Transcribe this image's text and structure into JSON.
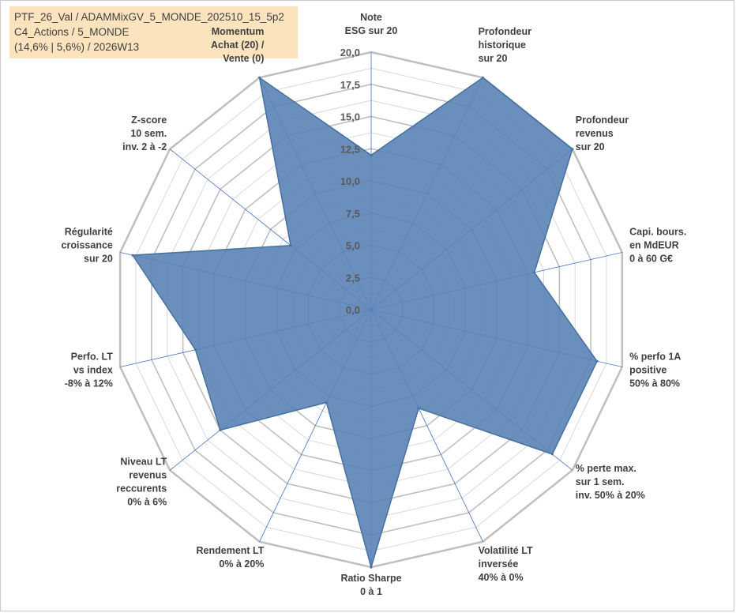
{
  "header": {
    "lines": [
      "PTF_26_Val / ADAMMixGV_5_MONDE_202510_15_5p2",
      "C4_Actions / 5_MONDE",
      "(14,6% | 5,6%) / 2026W13"
    ]
  },
  "colors": {
    "series_fill": "#5b83b5",
    "series_stroke": "#44719f",
    "grid_major": "#bfbfbf",
    "grid_minor": "#d9d9d9",
    "spoke": "#4472c4",
    "header_bg": "#fbe3bd",
    "highlight_text": "#a6a6a6"
  },
  "chart_data": {
    "type": "radar",
    "title": "",
    "rlim": [
      0,
      20
    ],
    "ticks": [
      {
        "value": 0,
        "label": "0,0"
      },
      {
        "value": 2.5,
        "label": "2,5"
      },
      {
        "value": 5,
        "label": "5,0"
      },
      {
        "value": 7.5,
        "label": "7,5"
      },
      {
        "value": 10,
        "label": "10,0"
      },
      {
        "value": 12.5,
        "label": "12,5"
      },
      {
        "value": 15,
        "label": "15,0"
      },
      {
        "value": 17.5,
        "label": "17,5"
      },
      {
        "value": 20,
        "label": "20,0"
      }
    ],
    "categories": [
      {
        "lines": [
          "Note",
          "ESG sur 20"
        ]
      },
      {
        "lines": [
          "Profondeur",
          "historique",
          "sur 20"
        ]
      },
      {
        "lines": [
          "Profondeur",
          "revenus",
          "sur 20"
        ]
      },
      {
        "lines": [
          "Capi. bours.",
          "en MdEUR",
          "0 à 60 G€"
        ]
      },
      {
        "lines": [
          "% perfo 1A",
          "positive",
          "50% à 80%"
        ]
      },
      {
        "lines": [
          "% perte max.",
          "sur 1 sem.",
          "inv. 50% à 20%"
        ]
      },
      {
        "lines": [
          "Volatilité LT",
          "inversée",
          "40% à 0%"
        ]
      },
      {
        "lines": [
          "Ratio Sharpe",
          "0 à 1"
        ]
      },
      {
        "lines": [
          "Rendement LT",
          "0% à 20%"
        ]
      },
      {
        "lines": [
          "Niveau LT",
          "revenus",
          "reccurents",
          "0% à 6%"
        ]
      },
      {
        "lines": [
          "Perfo. LT",
          "vs index",
          "-8% à 12%"
        ]
      },
      {
        "lines": [
          "Régularité",
          "croissance",
          "sur 20"
        ]
      },
      {
        "lines": [
          "Z-score",
          "10 sem.",
          "inv. 2 à -2"
        ]
      },
      {
        "lines": [
          "Momentum",
          "Achat (20) /",
          "Vente (0)"
        ],
        "highlight_line": 0
      }
    ],
    "series": [
      {
        "values": [
          12.0,
          20.0,
          20.0,
          13.0,
          18.0,
          18.0,
          8.5,
          20.0,
          8.0,
          15.0,
          14.0,
          19.0,
          8.0,
          20.0
        ]
      }
    ],
    "grid": true,
    "legend": "none"
  }
}
